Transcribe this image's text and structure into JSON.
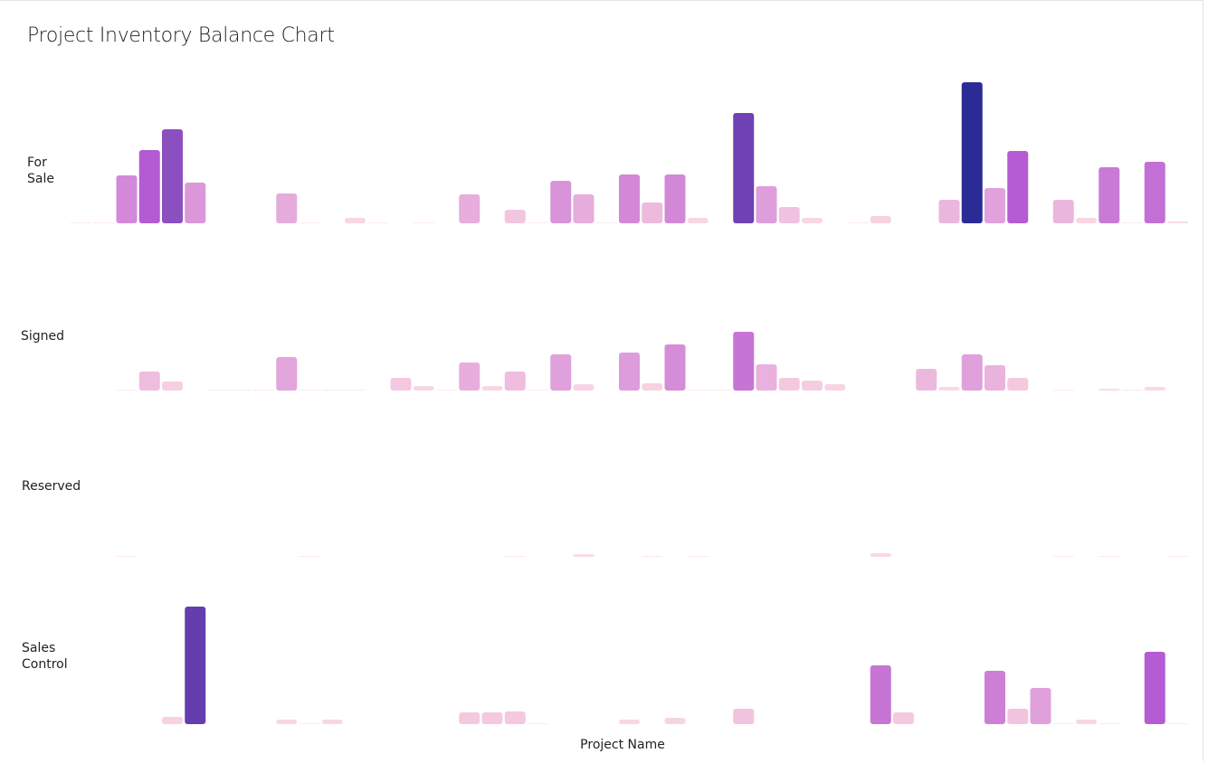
{
  "chart_data": {
    "type": "bar",
    "title": "Project Inventory Balance Chart",
    "xlabel": "Project Name",
    "ylabel": "",
    "layout": "small-multiples (one row per status, shared y scale)",
    "grid": false,
    "bar_count": 49,
    "colors": {
      "low": "#fbe0e8",
      "mid": "#d98fd8",
      "high": "#b35ad0",
      "higher": "#6a3fb0",
      "max": "#2b2b95"
    },
    "series": [
      {
        "name": "For Sale",
        "label": "For\nSale",
        "values": [
          0.5,
          0.5,
          53,
          81,
          104,
          45,
          null,
          null,
          null,
          33,
          0.5,
          null,
          6,
          0.5,
          null,
          0.5,
          null,
          32,
          null,
          15,
          0.5,
          47,
          32,
          0.5,
          54,
          23,
          54,
          6,
          null,
          122,
          41,
          18,
          6,
          null,
          0.5,
          8,
          null,
          null,
          26,
          156,
          39,
          80,
          null,
          26,
          6,
          62,
          0.5,
          68,
          2
        ]
      },
      {
        "name": "Signed",
        "label": "Signed",
        "values": [
          null,
          null,
          0.5,
          21,
          10,
          null,
          0.5,
          0.5,
          0.5,
          37,
          0.5,
          0.5,
          0.5,
          null,
          14,
          5,
          0.5,
          31,
          5,
          21,
          0.5,
          40,
          7,
          null,
          42,
          8,
          51,
          0.5,
          0.5,
          65,
          29,
          14,
          11,
          7,
          null,
          null,
          null,
          24,
          4,
          40,
          28,
          14,
          null,
          0.5,
          null,
          2,
          0.5,
          4,
          null
        ]
      },
      {
        "name": "Reserved",
        "label": "Reserved",
        "values": [
          null,
          null,
          1,
          null,
          null,
          null,
          null,
          null,
          null,
          null,
          1,
          null,
          null,
          null,
          null,
          null,
          null,
          null,
          null,
          1,
          null,
          null,
          3,
          null,
          null,
          1,
          null,
          1,
          null,
          null,
          null,
          null,
          null,
          null,
          null,
          4,
          null,
          null,
          null,
          null,
          null,
          null,
          null,
          1,
          null,
          1,
          null,
          null,
          1
        ]
      },
      {
        "name": "Sales Control",
        "label": "Sales\nControl",
        "values": [
          null,
          null,
          null,
          null,
          8,
          130,
          null,
          null,
          null,
          5,
          0.5,
          5,
          null,
          null,
          null,
          null,
          null,
          13,
          13,
          14,
          0.5,
          null,
          null,
          null,
          5,
          null,
          7,
          null,
          null,
          17,
          null,
          null,
          null,
          null,
          null,
          65,
          13,
          null,
          null,
          null,
          59,
          17,
          40,
          1,
          5,
          1,
          null,
          80,
          1
        ]
      }
    ],
    "ylim": [
      0,
      160
    ]
  }
}
